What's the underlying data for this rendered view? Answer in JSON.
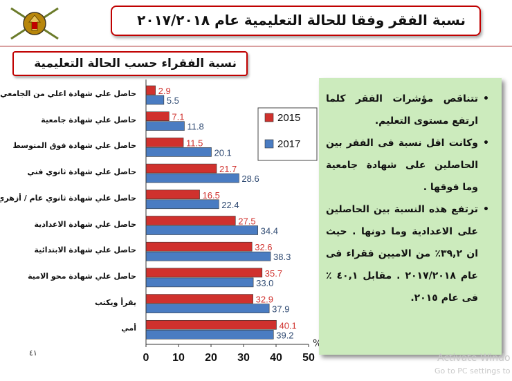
{
  "header": {
    "title": "نسبة الفقر وفقا للحالة التعليمية عام ٢٠١٧/٢٠١٨"
  },
  "chart_title_box": {
    "text": "نسبة الفقراء حسب الحالة التعليمية"
  },
  "chart_data": {
    "type": "bar",
    "orientation": "horizontal",
    "categories": [
      "حاصل علي شهادة اعلي من الجامعي",
      "حاصل علي شهادة جامعية",
      "حاصل علي شهادة فوق المتوسط",
      "حاصل علي شهادة ثانوي فني",
      "حاصل علي شهادة ثانوي عام / أزهري",
      "حاصل علي شهادة الاعدادية",
      "حاصل علي شهادة الابتدائية",
      "حاصل علي شهادة محو الامية",
      "يقرأ ويكتب",
      "أمي"
    ],
    "series": [
      {
        "name": "2015",
        "color": "#d0312d",
        "label_color": "#d0312d",
        "values": [
          2.9,
          7.1,
          11.5,
          21.7,
          16.5,
          27.5,
          32.6,
          35.7,
          32.9,
          40.1
        ]
      },
      {
        "name": "2017",
        "color": "#4a7cc2",
        "label_color": "#2f4a72",
        "values": [
          5.5,
          11.8,
          20.1,
          28.6,
          22.4,
          34.4,
          38.3,
          33.0,
          37.9,
          39.2
        ]
      }
    ],
    "xlim": [
      0,
      50
    ],
    "xticks": [
      "0",
      "10",
      "20",
      "30",
      "40",
      "50"
    ],
    "x_unit_label": "%",
    "legend": "inside-right",
    "grid": false
  },
  "bullets": [
    "تتناقص مؤشرات الفقر كلما ارتفع مستوى التعليم.",
    "وكانت اقل نسبة فى الفقر بين الحاصلين على شهادة جامعية وما فوقها .",
    "ترتفع هذه النسبة بين الحاصلين على الاعدادية وما دونها . حيث ان ٣٩,٢٪ من الاميين فقراء فى عام ٢٠١٧/٢٠١٨ . مقابل ٤٠,١ ٪ فى عام ٢٠١٥."
  ],
  "footer": {
    "page_number": "٤١",
    "watermark_line1": "Activate Windo",
    "watermark_line2": "Go to PC settings to a"
  }
}
